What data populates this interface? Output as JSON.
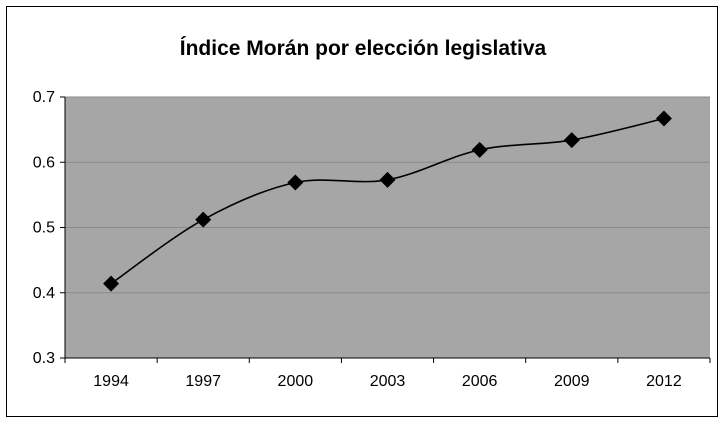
{
  "chart_data": {
    "type": "line",
    "title": "Índice Morán por elección legislativa",
    "xlabel": "",
    "ylabel": "",
    "categories": [
      "1994",
      "1997",
      "2000",
      "2003",
      "2006",
      "2009",
      "2012"
    ],
    "series": [
      {
        "name": "Índice Morán",
        "values": [
          0.414,
          0.512,
          0.569,
          0.573,
          0.619,
          0.634,
          0.667
        ],
        "marker": "diamond",
        "smooth": true,
        "color": "#000000"
      }
    ],
    "ylim": [
      0.3,
      0.7
    ],
    "yticks": [
      0.3,
      0.4,
      0.5,
      0.6,
      0.7
    ],
    "ytick_labels": [
      "0.3",
      "0.4",
      "0.5",
      "0.6",
      "0.7"
    ],
    "grid": true,
    "legend": "none",
    "colors": {
      "plot_background": "#a6a6a6",
      "gridline": "#8a8a8a",
      "line": "#000000"
    }
  }
}
